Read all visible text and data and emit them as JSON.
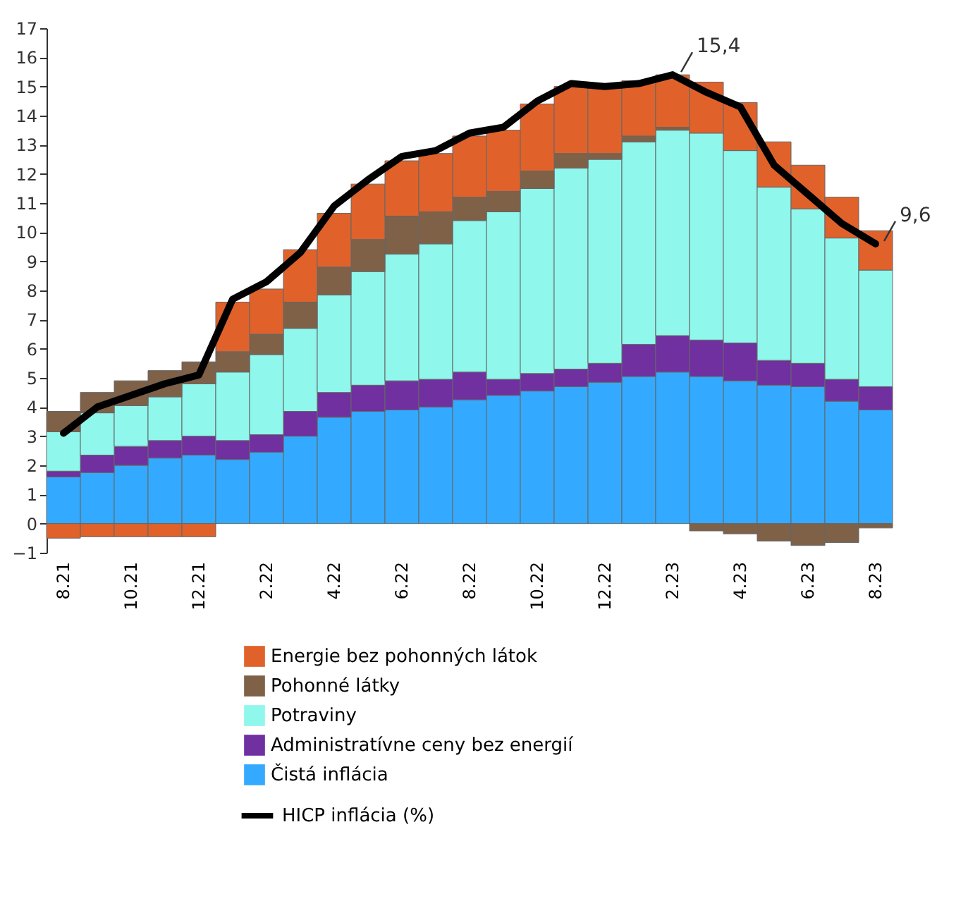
{
  "chart_data": {
    "type": "bar",
    "stacked": true,
    "categories": [
      "8.21",
      null,
      "10.21",
      null,
      "12.21",
      null,
      "2.22",
      null,
      "4.22",
      null,
      "6.22",
      null,
      "8.22",
      null,
      "10.22",
      null,
      "12.22",
      null,
      "2.23",
      null,
      "4.23",
      null,
      "6.23",
      null,
      "8.23"
    ],
    "series": [
      {
        "name": "Čistá inflácia",
        "color": "#33aaff",
        "values": [
          1.6,
          1.75,
          2.0,
          2.25,
          2.35,
          2.2,
          2.45,
          3.0,
          3.65,
          3.85,
          3.9,
          4.0,
          4.25,
          4.4,
          4.55,
          4.7,
          4.85,
          5.05,
          5.2,
          5.05,
          4.9,
          4.75,
          4.7,
          4.2,
          3.9
        ]
      },
      {
        "name": "Administratívne ceny bez energií",
        "color": "#7030a0",
        "values": [
          0.2,
          0.6,
          0.65,
          0.6,
          0.65,
          0.65,
          0.6,
          0.85,
          0.85,
          0.9,
          1.0,
          0.95,
          0.95,
          0.55,
          0.6,
          0.6,
          0.65,
          1.1,
          1.25,
          1.25,
          1.3,
          0.85,
          0.8,
          0.75,
          0.8
        ]
      },
      {
        "name": "Potraviny",
        "color": "#8ff7ec",
        "values": [
          1.35,
          1.45,
          1.4,
          1.5,
          1.8,
          2.35,
          2.75,
          2.85,
          3.35,
          3.9,
          4.35,
          4.65,
          5.2,
          5.75,
          6.35,
          6.9,
          7.0,
          6.95,
          7.05,
          7.1,
          6.6,
          5.95,
          5.3,
          4.85,
          4.0
        ]
      },
      {
        "name": "Pohonné látky",
        "color": "#7f6148",
        "values": [
          0.7,
          0.7,
          0.85,
          0.9,
          0.75,
          0.7,
          0.7,
          0.9,
          0.95,
          1.1,
          1.3,
          1.1,
          0.8,
          0.7,
          0.6,
          0.5,
          0.2,
          0.2,
          0.1,
          -0.25,
          -0.35,
          -0.6,
          -0.75,
          -0.65,
          -0.15
        ]
      },
      {
        "name": "Energie bez pohonných látok",
        "color": "#e0622a",
        "values": [
          -0.5,
          -0.45,
          -0.45,
          -0.45,
          -0.45,
          1.7,
          1.55,
          1.8,
          1.85,
          1.9,
          1.9,
          2.0,
          2.1,
          2.1,
          2.3,
          2.3,
          2.4,
          1.9,
          1.8,
          1.75,
          1.65,
          1.55,
          1.5,
          1.4,
          1.35
        ]
      },
      {
        "name": "HICP inflácia (%)",
        "color": "#000000",
        "type": "line",
        "values": [
          3.1,
          4.0,
          4.4,
          4.8,
          5.1,
          7.7,
          8.3,
          9.3,
          10.9,
          11.8,
          12.6,
          12.8,
          13.4,
          13.6,
          14.5,
          15.1,
          15.0,
          15.1,
          15.4,
          14.8,
          14.3,
          12.3,
          11.3,
          10.3,
          9.6
        ]
      }
    ],
    "ylim": [
      -1,
      17
    ],
    "yticks": [
      -1,
      0,
      1,
      2,
      3,
      4,
      5,
      6,
      7,
      8,
      9,
      10,
      11,
      12,
      13,
      14,
      15,
      16,
      17
    ],
    "legend": "bottom",
    "annotations": [
      {
        "text": "15,4",
        "x": "2.23",
        "y": 15.4
      },
      {
        "text": "9,6",
        "x": "8.23",
        "y": 9.6
      }
    ]
  }
}
